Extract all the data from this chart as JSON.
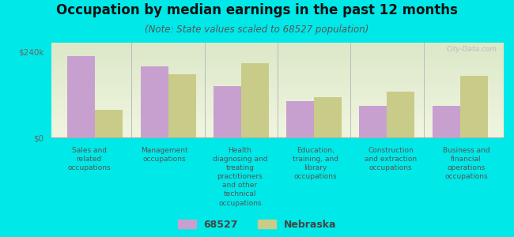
{
  "title": "Occupation by median earnings in the past 12 months",
  "subtitle": "(Note: State values scaled to 68527 population)",
  "background_color": "#00e8e8",
  "plot_bg_top": "#dce8c8",
  "plot_bg_bottom": "#f0f5e0",
  "categories": [
    "Sales and\nrelated\noccupations",
    "Management\noccupations",
    "Health\ndiagnosing and\ntreating\npractitioners\nand other\ntechnical\noccupations",
    "Education,\ntraining, and\nlibrary\noccupations",
    "Construction\nand extraction\noccupations",
    "Business and\nfinancial\noperations\noccupations"
  ],
  "city_values": [
    228000,
    198000,
    143000,
    102000,
    88000,
    88000
  ],
  "state_values": [
    78000,
    177000,
    208000,
    112000,
    128000,
    172000
  ],
  "city_color": "#c8a0d0",
  "state_color": "#c8cc88",
  "city_label": "68527",
  "state_label": "Nebraska",
  "ylim": [
    0,
    265000
  ],
  "ytick_vals": [
    0,
    240000
  ],
  "ytick_labels": [
    "$0",
    "$240k"
  ],
  "bar_width": 0.38,
  "watermark": "City-Data.com",
  "title_fontsize": 12,
  "subtitle_fontsize": 8.5,
  "ytick_fontsize": 7.5,
  "xtick_fontsize": 6.5,
  "legend_fontsize": 9
}
